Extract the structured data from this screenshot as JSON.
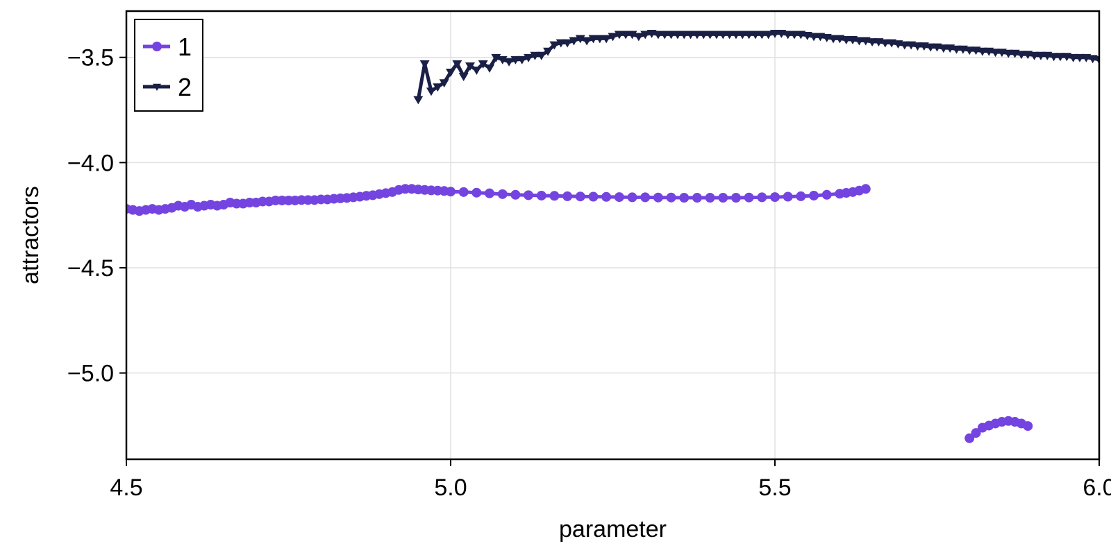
{
  "chart_data": {
    "type": "line",
    "title": "",
    "xlabel": "parameter",
    "ylabel": "attractors",
    "xlim": [
      4.5,
      6.0
    ],
    "ylim": [
      -5.41,
      -3.28
    ],
    "xticks": [
      4.5,
      5.0,
      5.5,
      6.0
    ],
    "xtick_labels": [
      "4.5",
      "5.0",
      "5.5",
      "6.0"
    ],
    "yticks": [
      -3.5,
      -4.0,
      -4.5,
      -5.0
    ],
    "ytick_labels": [
      "−3.5",
      "−4.0",
      "−4.5",
      "−5.0"
    ],
    "grid": true,
    "legend_position": "top-left",
    "series": [
      {
        "name": "1",
        "color": "#7444e0",
        "marker": "circle",
        "segments": [
          {
            "x": [
              4.5,
              4.51,
              4.52,
              4.53,
              4.54,
              4.55,
              4.56,
              4.57,
              4.58,
              4.59,
              4.6,
              4.61,
              4.62,
              4.63,
              4.64,
              4.65,
              4.66,
              4.67,
              4.68,
              4.69,
              4.7,
              4.71,
              4.72,
              4.73,
              4.74,
              4.75,
              4.76,
              4.77,
              4.78,
              4.79,
              4.8,
              4.81,
              4.82,
              4.83,
              4.84,
              4.85,
              4.86,
              4.87,
              4.88,
              4.89,
              4.9,
              4.91,
              4.92,
              4.93,
              4.94,
              4.95,
              4.96,
              4.97,
              4.98,
              4.99,
              5.0,
              5.02,
              5.04,
              5.06,
              5.08,
              5.1,
              5.12,
              5.14,
              5.16,
              5.18,
              5.2,
              5.22,
              5.24,
              5.26,
              5.28,
              5.3,
              5.32,
              5.34,
              5.36,
              5.38,
              5.4,
              5.42,
              5.44,
              5.46,
              5.48,
              5.5,
              5.52,
              5.54,
              5.56,
              5.58,
              5.6,
              5.61,
              5.62,
              5.63,
              5.64
            ],
            "y": [
              -4.22,
              -4.225,
              -4.23,
              -4.225,
              -4.22,
              -4.225,
              -4.22,
              -4.215,
              -4.205,
              -4.21,
              -4.2,
              -4.21,
              -4.205,
              -4.2,
              -4.205,
              -4.2,
              -4.19,
              -4.195,
              -4.195,
              -4.19,
              -4.19,
              -4.185,
              -4.185,
              -4.18,
              -4.18,
              -4.18,
              -4.18,
              -4.178,
              -4.178,
              -4.178,
              -4.175,
              -4.175,
              -4.172,
              -4.17,
              -4.168,
              -4.165,
              -4.162,
              -4.158,
              -4.155,
              -4.15,
              -4.145,
              -4.14,
              -4.13,
              -4.125,
              -4.125,
              -4.128,
              -4.13,
              -4.132,
              -4.133,
              -4.135,
              -4.138,
              -4.14,
              -4.143,
              -4.146,
              -4.15,
              -4.153,
              -4.155,
              -4.157,
              -4.158,
              -4.16,
              -4.161,
              -4.162,
              -4.163,
              -4.164,
              -4.165,
              -4.165,
              -4.166,
              -4.166,
              -4.167,
              -4.167,
              -4.167,
              -4.167,
              -4.167,
              -4.166,
              -4.165,
              -4.164,
              -4.162,
              -4.16,
              -4.157,
              -4.153,
              -4.148,
              -4.144,
              -4.14,
              -4.133,
              -4.125
            ]
          },
          {
            "x": [
              5.8,
              5.81,
              5.82,
              5.83,
              5.84,
              5.85,
              5.86,
              5.87,
              5.88,
              5.89
            ],
            "y": [
              -5.31,
              -5.285,
              -5.26,
              -5.25,
              -5.24,
              -5.232,
              -5.228,
              -5.232,
              -5.24,
              -5.252
            ]
          }
        ]
      },
      {
        "name": "2",
        "color": "#1a1f45",
        "marker": "triangle-down",
        "segments": [
          {
            "x": [
              4.95,
              4.96,
              4.97,
              4.98,
              4.99,
              5.0,
              5.01,
              5.02,
              5.03,
              5.04,
              5.05,
              5.06,
              5.07,
              5.08,
              5.09,
              5.1,
              5.11,
              5.12,
              5.13,
              5.14,
              5.15,
              5.16,
              5.17,
              5.18,
              5.19,
              5.2,
              5.21,
              5.22,
              5.23,
              5.24,
              5.25,
              5.26,
              5.27,
              5.28,
              5.29,
              5.3,
              5.31,
              5.32,
              5.33,
              5.34,
              5.35,
              5.36,
              5.37,
              5.38,
              5.39,
              5.4,
              5.41,
              5.42,
              5.43,
              5.44,
              5.45,
              5.46,
              5.47,
              5.48,
              5.49,
              5.5,
              5.51,
              5.52,
              5.53,
              5.54,
              5.55,
              5.56,
              5.57,
              5.58,
              5.59,
              5.6,
              5.61,
              5.62,
              5.63,
              5.64,
              5.65,
              5.66,
              5.67,
              5.68,
              5.69,
              5.7,
              5.71,
              5.72,
              5.73,
              5.74,
              5.75,
              5.76,
              5.77,
              5.78,
              5.79,
              5.8,
              5.81,
              5.82,
              5.83,
              5.84,
              5.85,
              5.86,
              5.87,
              5.88,
              5.89,
              5.9,
              5.91,
              5.92,
              5.93,
              5.94,
              5.95,
              5.96,
              5.97,
              5.98,
              5.99,
              6.0
            ],
            "y": [
              -3.7,
              -3.53,
              -3.66,
              -3.64,
              -3.62,
              -3.57,
              -3.53,
              -3.59,
              -3.54,
              -3.56,
              -3.53,
              -3.55,
              -3.5,
              -3.51,
              -3.52,
              -3.51,
              -3.51,
              -3.5,
              -3.49,
              -3.49,
              -3.47,
              -3.44,
              -3.43,
              -3.43,
              -3.42,
              -3.41,
              -3.42,
              -3.41,
              -3.41,
              -3.41,
              -3.4,
              -3.39,
              -3.39,
              -3.39,
              -3.4,
              -3.39,
              -3.385,
              -3.39,
              -3.39,
              -3.39,
              -3.39,
              -3.39,
              -3.39,
              -3.39,
              -3.39,
              -3.39,
              -3.39,
              -3.39,
              -3.39,
              -3.39,
              -3.39,
              -3.39,
              -3.39,
              -3.39,
              -3.39,
              -3.385,
              -3.385,
              -3.39,
              -3.39,
              -3.39,
              -3.395,
              -3.4,
              -3.4,
              -3.405,
              -3.41,
              -3.41,
              -3.415,
              -3.415,
              -3.42,
              -3.42,
              -3.425,
              -3.425,
              -3.43,
              -3.43,
              -3.435,
              -3.44,
              -3.44,
              -3.445,
              -3.445,
              -3.45,
              -3.45,
              -3.455,
              -3.455,
              -3.46,
              -3.46,
              -3.465,
              -3.465,
              -3.47,
              -3.47,
              -3.475,
              -3.475,
              -3.48,
              -3.48,
              -3.485,
              -3.485,
              -3.49,
              -3.49,
              -3.49,
              -3.495,
              -3.495,
              -3.495,
              -3.5,
              -3.5,
              -3.5,
              -3.505,
              -3.51
            ]
          }
        ]
      }
    ]
  },
  "legend": {
    "items": [
      {
        "label": "1",
        "color": "#7444e0",
        "marker": "circle"
      },
      {
        "label": "2",
        "color": "#1a1f45",
        "marker": "triangle-down"
      }
    ]
  },
  "axes": {
    "xlabel": "parameter",
    "ylabel": "attractors"
  }
}
